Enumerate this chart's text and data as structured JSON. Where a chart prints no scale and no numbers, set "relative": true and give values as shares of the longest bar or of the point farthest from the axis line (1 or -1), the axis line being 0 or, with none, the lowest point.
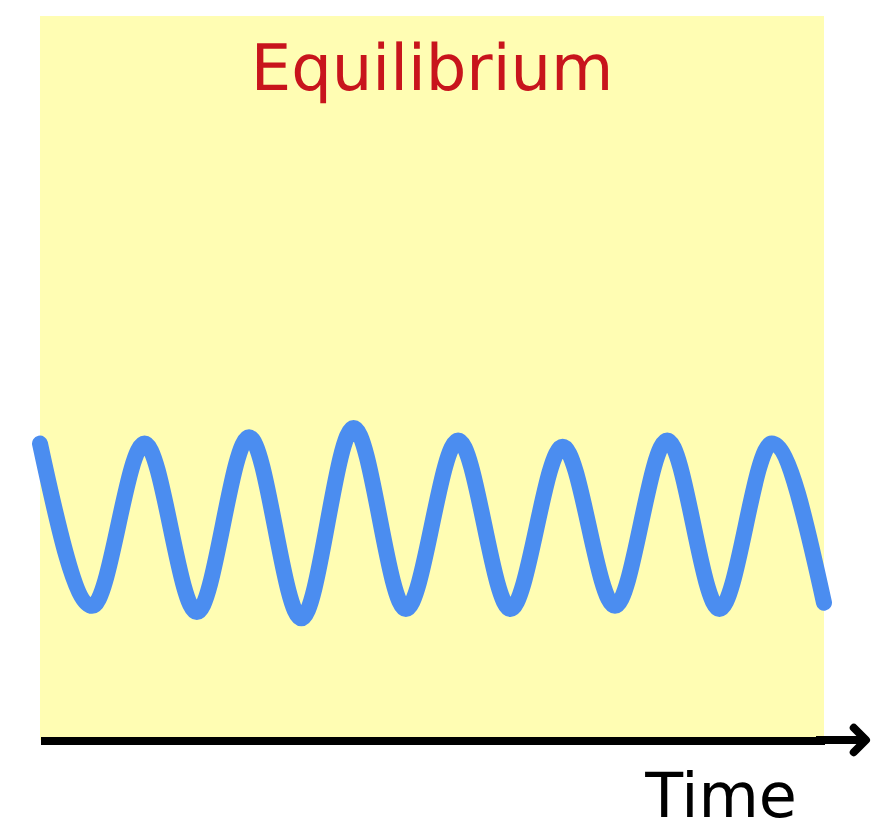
{
  "chart_data": {
    "type": "line",
    "title": "Equilibrium",
    "xlabel": "Time",
    "relative": true,
    "grid": false,
    "categories": [
      null,
      null,
      null,
      null,
      null,
      null,
      null,
      null,
      null,
      null,
      null,
      null,
      null,
      null,
      null,
      null
    ],
    "series": [
      {
        "color": "#4b8df0",
        "values": [
          0.95,
          0.43,
          0.95,
          0.41,
          0.97,
          0.39,
          1,
          0.42,
          0.96,
          0.42,
          0.94,
          0.43,
          0.96,
          0.42,
          0.95,
          0.44
        ]
      }
    ]
  }
}
